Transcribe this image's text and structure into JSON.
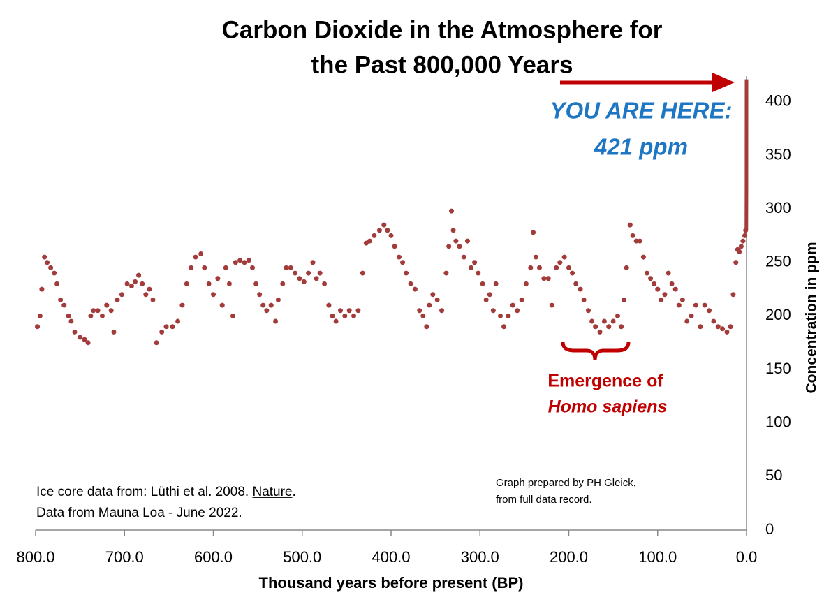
{
  "chart_data": {
    "type": "scatter",
    "title_lines": [
      "Carbon Dioxide in the Atmosphere for",
      "the Past 800,000 Years"
    ],
    "x_label": "Thousand years before present (BP)",
    "y_label": "Concentration in ppm",
    "annotations": {
      "you_are_here": "YOU ARE HERE:",
      "current": "421 ppm",
      "emergence_line1": "Emergence of",
      "emergence_line2": "Homo sapiens",
      "source_line1": [
        "Ice core data from: Lüthi et al. 2008. ",
        "Nature",
        "."
      ],
      "source_line2": "Data from Mauna Loa - June 2022.",
      "credit_line1": "Graph prepared by PH Gleick,",
      "credit_line2": "from full data record."
    },
    "xlim": [
      800,
      0
    ],
    "ylim": [
      0,
      424
    ],
    "xticks": [
      {
        "value": 800,
        "label": "800.0"
      },
      {
        "value": 700,
        "label": "700.0"
      },
      {
        "value": 600,
        "label": "600.0"
      },
      {
        "value": 500,
        "label": "500.0"
      },
      {
        "value": 400,
        "label": "400.0"
      },
      {
        "value": 300,
        "label": "300.0"
      },
      {
        "value": 200,
        "label": "200.0"
      },
      {
        "value": 100,
        "label": "100.0"
      },
      {
        "value": 0,
        "label": "0.0"
      }
    ],
    "yticks": [
      0,
      50,
      100,
      150,
      200,
      250,
      300,
      350,
      400
    ],
    "series": [
      {
        "style": "markers",
        "color": "#a33b3b",
        "x": [
          798,
          795,
          793,
          790,
          787,
          783,
          779,
          776,
          772,
          768,
          763,
          760,
          756,
          750,
          745,
          741,
          738,
          735,
          730,
          725,
          720,
          715,
          712,
          708,
          703,
          697,
          692,
          688,
          684,
          680,
          676,
          672,
          668,
          664,
          658,
          653,
          646,
          640,
          635,
          630,
          625,
          620,
          614,
          610,
          605,
          600,
          595,
          590,
          586,
          582,
          578,
          575,
          570,
          565,
          560,
          556,
          552,
          548,
          544,
          540,
          535,
          530,
          527,
          522,
          518,
          513,
          508,
          503,
          498,
          493,
          488,
          484,
          480,
          475,
          470,
          466,
          462,
          457,
          452,
          447,
          442,
          437,
          432,
          428,
          424,
          419,
          413,
          408,
          404,
          400,
          396,
          391,
          387,
          383,
          378,
          373,
          368,
          364,
          360,
          357,
          353,
          348,
          343,
          338,
          335,
          332,
          330,
          327,
          323,
          318,
          314,
          310,
          306,
          302,
          297,
          293,
          289,
          285,
          282,
          277,
          273,
          268,
          263,
          258,
          253,
          248,
          243,
          240,
          237,
          233,
          228,
          223,
          219,
          214,
          210,
          205,
          200,
          196,
          192,
          187,
          183,
          178,
          174,
          170,
          165,
          160,
          155,
          150,
          145,
          141,
          138,
          135,
          131,
          128,
          124,
          120,
          116,
          112,
          108,
          104,
          100,
          96,
          92,
          88,
          84,
          80,
          76,
          72,
          67,
          62,
          57,
          52,
          47,
          42,
          37,
          32,
          27,
          22,
          18,
          15,
          12,
          10,
          8,
          6,
          4,
          2,
          1
        ],
        "values": [
          190,
          200,
          225,
          255,
          250,
          245,
          240,
          230,
          215,
          210,
          200,
          195,
          185,
          180,
          178,
          175,
          200,
          205,
          205,
          200,
          210,
          205,
          185,
          215,
          220,
          230,
          228,
          232,
          238,
          230,
          220,
          225,
          215,
          175,
          185,
          190,
          190,
          195,
          210,
          230,
          245,
          255,
          258,
          245,
          230,
          220,
          235,
          210,
          245,
          230,
          200,
          250,
          252,
          250,
          252,
          245,
          230,
          220,
          210,
          205,
          210,
          195,
          215,
          230,
          245,
          245,
          240,
          235,
          232,
          240,
          250,
          235,
          240,
          230,
          210,
          200,
          195,
          205,
          200,
          205,
          200,
          205,
          240,
          268,
          270,
          275,
          280,
          285,
          280,
          275,
          265,
          255,
          250,
          240,
          230,
          225,
          205,
          200,
          190,
          210,
          220,
          215,
          205,
          240,
          265,
          298,
          280,
          270,
          265,
          255,
          270,
          245,
          250,
          240,
          230,
          215,
          220,
          205,
          230,
          200,
          190,
          200,
          210,
          205,
          215,
          230,
          245,
          278,
          255,
          245,
          235,
          235,
          210,
          245,
          250,
          255,
          245,
          240,
          230,
          225,
          215,
          205,
          195,
          190,
          185,
          195,
          190,
          195,
          200,
          190,
          215,
          245,
          285,
          275,
          270,
          270,
          255,
          240,
          235,
          230,
          225,
          215,
          220,
          240,
          230,
          225,
          210,
          215,
          195,
          200,
          210,
          190,
          210,
          205,
          195,
          190,
          188,
          185,
          190,
          220,
          250,
          262,
          260,
          265,
          270,
          275,
          280
        ]
      },
      {
        "style": "line",
        "color": "#a33b3b",
        "x": [
          0.2,
          0.064,
          0
        ],
        "values": [
          280,
          316,
          421
        ]
      }
    ]
  }
}
